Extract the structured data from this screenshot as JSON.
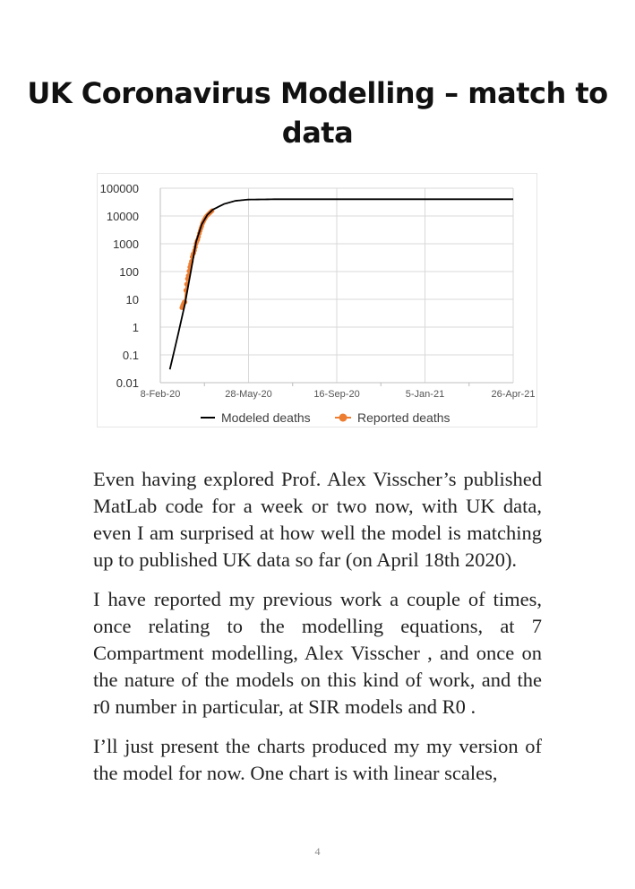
{
  "title": "UK Coronavirus Modelling – match to data",
  "chart_data": {
    "type": "line",
    "title": "",
    "xlabel": "",
    "ylabel": "",
    "y_scale": "log",
    "ylim": [
      0.01,
      100000
    ],
    "y_ticks": [
      "100000",
      "10000",
      "1000",
      "100",
      "10",
      "1",
      "0.1",
      "0.01"
    ],
    "xlim": [
      "2020-02-08",
      "2021-04-26"
    ],
    "x_ticks": [
      "8-Feb-20",
      "28-May-20",
      "16-Sep-20",
      "5-Jan-21",
      "26-Apr-21"
    ],
    "grid": true,
    "legend": "bottom",
    "series": [
      {
        "name": "Modeled deaths",
        "color": "#000000",
        "style": "line",
        "points": [
          [
            "2020-02-20",
            0.03
          ],
          [
            "2020-03-01",
            0.5
          ],
          [
            "2020-03-10",
            7
          ],
          [
            "2020-03-17",
            90
          ],
          [
            "2020-03-24",
            1200
          ],
          [
            "2020-03-31",
            5000
          ],
          [
            "2020-04-07",
            11000
          ],
          [
            "2020-04-14",
            17000
          ],
          [
            "2020-04-28",
            27000
          ],
          [
            "2020-05-12",
            35000
          ],
          [
            "2020-05-28",
            39000
          ],
          [
            "2020-06-30",
            40000
          ],
          [
            "2021-04-26",
            40000
          ]
        ]
      },
      {
        "name": "Reported deaths",
        "color": "#ED7D31",
        "style": "markers",
        "points": [
          [
            "2020-03-06",
            5
          ],
          [
            "2020-03-07",
            6
          ],
          [
            "2020-03-08",
            7
          ],
          [
            "2020-03-09",
            8
          ],
          [
            "2020-03-10",
            8
          ],
          [
            "2020-03-11",
            21
          ],
          [
            "2020-03-12",
            35
          ],
          [
            "2020-03-13",
            55
          ],
          [
            "2020-03-14",
            71
          ],
          [
            "2020-03-15",
            104
          ],
          [
            "2020-03-16",
            144
          ],
          [
            "2020-03-17",
            185
          ],
          [
            "2020-03-18",
            233
          ],
          [
            "2020-03-19",
            335
          ],
          [
            "2020-03-20",
            422
          ],
          [
            "2020-03-21",
            465
          ],
          [
            "2020-03-22",
            578
          ],
          [
            "2020-03-23",
            759
          ],
          [
            "2020-03-24",
            1019
          ],
          [
            "2020-03-25",
            1228
          ],
          [
            "2020-03-26",
            1408
          ],
          [
            "2020-03-27",
            1789
          ],
          [
            "2020-03-28",
            2352
          ],
          [
            "2020-03-29",
            2921
          ],
          [
            "2020-03-30",
            3605
          ],
          [
            "2020-03-31",
            4313
          ],
          [
            "2020-04-01",
            5373
          ],
          [
            "2020-04-02",
            6159
          ],
          [
            "2020-04-03",
            7097
          ],
          [
            "2020-04-04",
            7978
          ],
          [
            "2020-04-05",
            8958
          ],
          [
            "2020-04-06",
            9875
          ],
          [
            "2020-04-07",
            10612
          ],
          [
            "2020-04-08",
            11329
          ],
          [
            "2020-04-09",
            12107
          ],
          [
            "2020-04-10",
            12868
          ],
          [
            "2020-04-11",
            13729
          ],
          [
            "2020-04-12",
            14576
          ],
          [
            "2020-04-13",
            15464
          ]
        ]
      }
    ]
  },
  "paragraphs": [
    "Even having explored Prof. Alex Visscher’s published MatLab code for a week or two now, with UK data, even I am surprised at how well the model is matching up to published UK data so far (on April 18th 2020).",
    "I have reported my previous work a couple of times, once relating to the modelling equations, at 7 Compartment modelling, Alex Visscher , and once on the nature of the models on this kind of work, and the r0 number in particular, at SIR models and R0 .",
    "I’ll just present the charts produced my my version of the model for now. One chart is with linear scales,"
  ],
  "page_number": "4"
}
